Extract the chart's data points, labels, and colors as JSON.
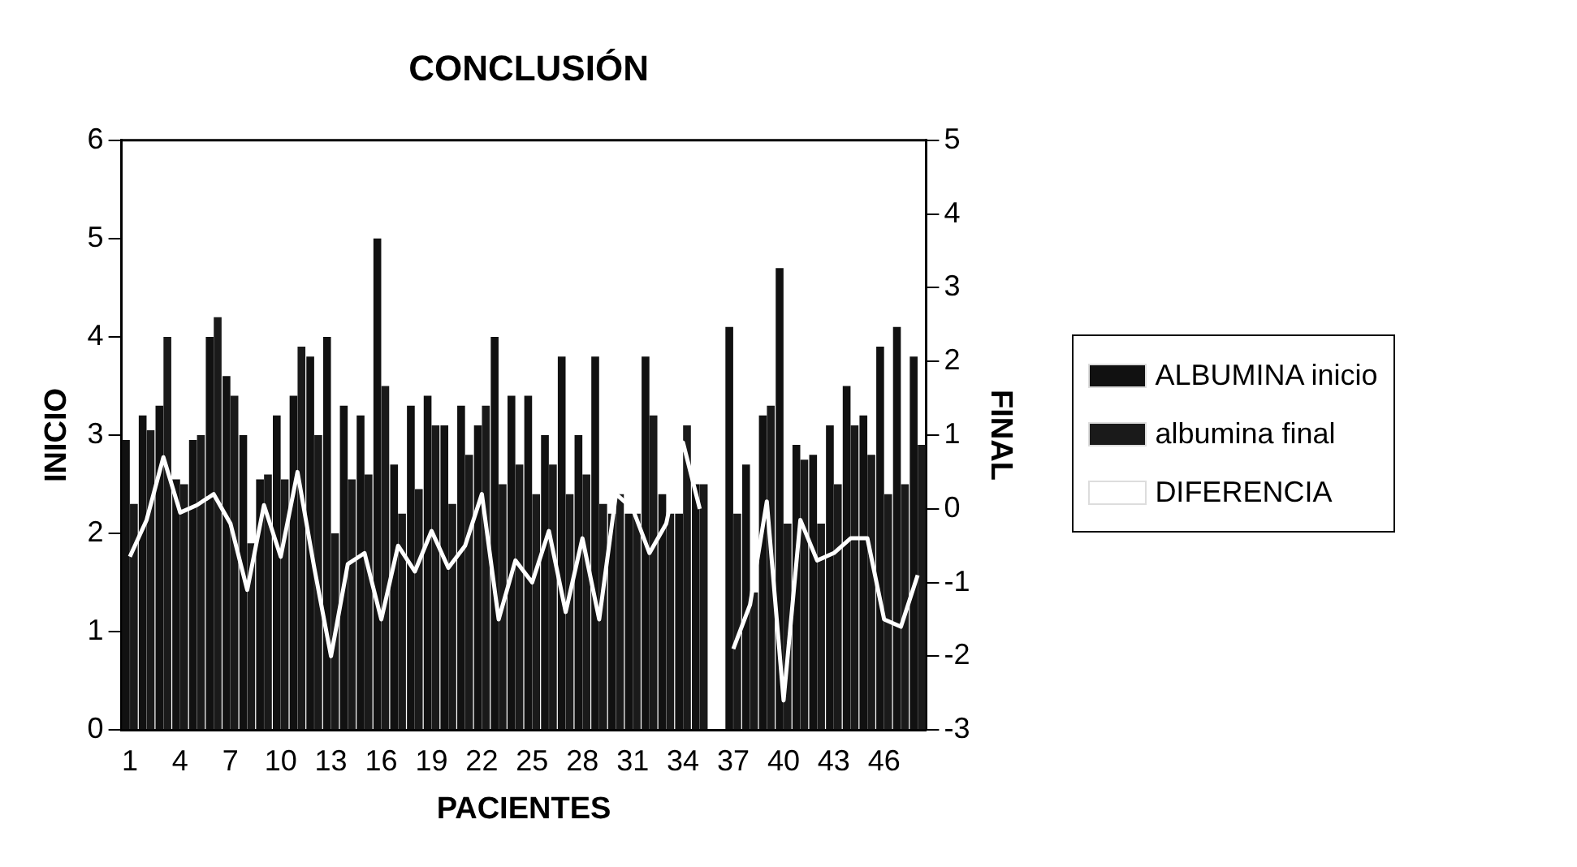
{
  "chart_data": {
    "type": "bar",
    "title": "CONCLUSIÓN",
    "xlabel": "PACIENTES",
    "ylabel": "INICIO",
    "y2label": "FINAL",
    "categories": [
      "1",
      null,
      null,
      "4",
      null,
      null,
      "7",
      null,
      null,
      "10",
      null,
      null,
      "13",
      null,
      null,
      "16",
      null,
      null,
      "19",
      null,
      null,
      "22",
      null,
      null,
      "25",
      null,
      null,
      "28",
      null,
      null,
      "31",
      null,
      null,
      "34",
      null,
      null,
      "37",
      null,
      null,
      "40",
      null,
      null,
      "43",
      null,
      null,
      "46",
      null,
      null
    ],
    "series": [
      {
        "name": "ALBUMINA inicio",
        "color": "#111111",
        "values": [
          2.95,
          3.2,
          3.3,
          2.55,
          2.95,
          4.0,
          3.6,
          3.0,
          2.55,
          3.2,
          3.4,
          3.8,
          4.0,
          3.3,
          3.2,
          5.0,
          2.7,
          3.3,
          3.4,
          3.1,
          3.3,
          3.1,
          4.0,
          3.4,
          3.4,
          3.0,
          3.8,
          3.0,
          3.8,
          2.2,
          2.2,
          3.8,
          2.4,
          2.2,
          2.5,
          null,
          4.1,
          2.7,
          3.2,
          4.7,
          2.9,
          2.8,
          3.1,
          3.5,
          3.2,
          3.9,
          4.1,
          3.8
        ]
      },
      {
        "name": "albumina final",
        "color": "#1a1a1a",
        "values": [
          2.3,
          3.05,
          4.0,
          2.5,
          3.0,
          4.2,
          3.4,
          1.9,
          2.6,
          2.55,
          3.9,
          3.0,
          2.0,
          2.55,
          2.6,
          3.5,
          2.2,
          2.45,
          3.1,
          2.3,
          2.8,
          3.3,
          2.5,
          2.7,
          2.4,
          2.7,
          2.4,
          2.6,
          2.3,
          2.4,
          2.2,
          3.2,
          2.2,
          3.1,
          2.5,
          null,
          2.2,
          1.4,
          3.3,
          2.1,
          2.75,
          2.1,
          2.5,
          3.1,
          2.8,
          2.4,
          2.5,
          2.9
        ]
      },
      {
        "name": "DIFERENCIA",
        "type": "line",
        "axis": "y2",
        "color": "#ffffff",
        "values": [
          -0.65,
          -0.15,
          0.7,
          -0.05,
          0.05,
          0.2,
          -0.2,
          -1.1,
          0.05,
          -0.65,
          0.5,
          -0.8,
          -2.0,
          -0.75,
          -0.6,
          -1.5,
          -0.5,
          -0.85,
          -0.3,
          -0.8,
          -0.5,
          0.2,
          -1.5,
          -0.7,
          -1.0,
          -0.3,
          -1.4,
          -0.4,
          -1.5,
          0.2,
          0.0,
          -0.6,
          -0.2,
          0.9,
          0.0,
          null,
          -1.9,
          -1.3,
          0.1,
          -2.6,
          -0.15,
          -0.7,
          -0.6,
          -0.4,
          -0.4,
          -1.5,
          -1.6,
          -0.9
        ]
      }
    ],
    "ylim": [
      0,
      6
    ],
    "yticks": [
      0,
      1,
      2,
      3,
      4,
      5,
      6
    ],
    "y2lim": [
      -3,
      5
    ],
    "y2ticks": [
      -3,
      -2,
      -1,
      0,
      1,
      2,
      3,
      4,
      5
    ],
    "grid": false,
    "legend": "right"
  }
}
